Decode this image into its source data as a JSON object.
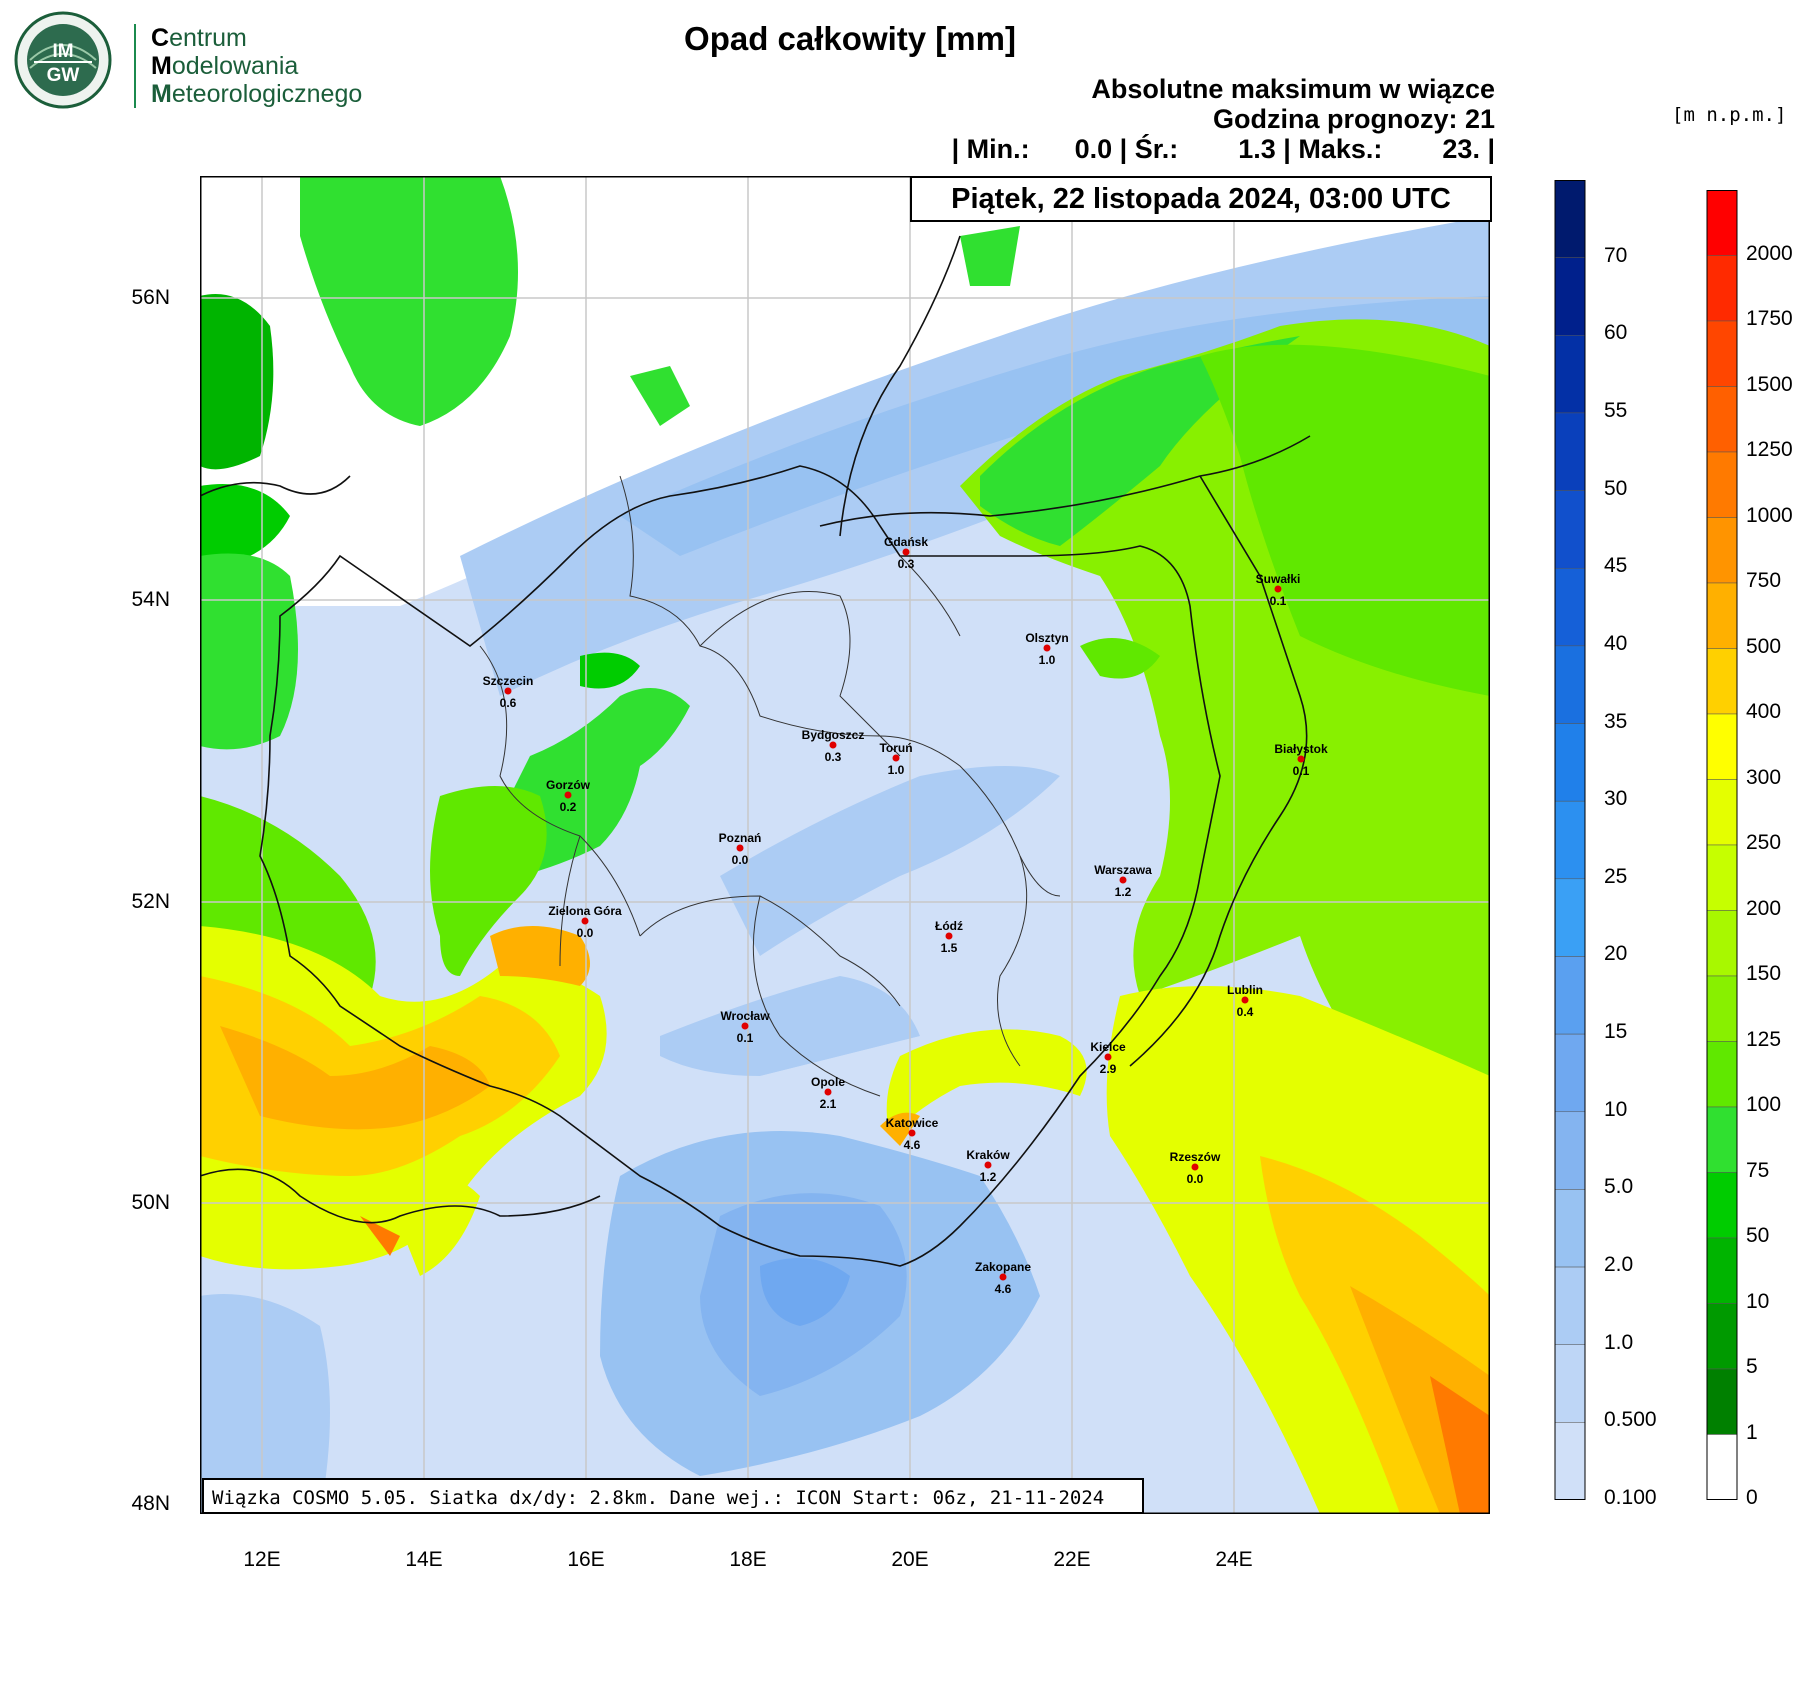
{
  "logo": {
    "seal_text": "IMGW",
    "lines": [
      {
        "initial": "C",
        "rest": "entrum"
      },
      {
        "initial": "M",
        "rest": "odelowania"
      },
      {
        "initial": "M",
        "rest": "eteorologicznego"
      }
    ]
  },
  "title": "Opad całkowity [mm]",
  "info": {
    "line1": "Absolutne maksimum w wiązce",
    "line2": "Godzina prognozy: 21",
    "line3": "| Min.:      0.0 | Śr.:        1.3 | Maks.:        23. |"
  },
  "date": "Piątek, 22 listopada 2024, 03:00 UTC",
  "footer": "Wiązka COSMO 5.05. Siatka dx/dy: 2.8km. Dane wej.: ICON Start: 06z, 21-11-2024",
  "axes": {
    "lat_labels": [
      "56N",
      "54N",
      "52N",
      "50N",
      "48N"
    ],
    "lon_labels": [
      "12E",
      "14E",
      "16E",
      "18E",
      "20E",
      "22E",
      "24E"
    ]
  },
  "precip_scale": {
    "labels": [
      "70",
      "60",
      "55",
      "50",
      "45",
      "40",
      "35",
      "30",
      "25",
      "20",
      "15",
      "10",
      "5.0",
      "2.0",
      "1.0",
      "0.500",
      "0.100"
    ],
    "colors": [
      "#001a6e",
      "#00208c",
      "#0330a6",
      "#0a40bb",
      "#1150cc",
      "#1560d8",
      "#1a70e0",
      "#2080ea",
      "#2c90f0",
      "#3aa0f5",
      "#5aa0f0",
      "#6fa8f0",
      "#84b4f0",
      "#98c2f2",
      "#acccf4",
      "#bed6f6",
      "#d0e0f8"
    ]
  },
  "height_scale": {
    "unit": "[m n.p.m.]",
    "labels": [
      "2000",
      "1750",
      "1500",
      "1250",
      "1000",
      "750",
      "500",
      "400",
      "300",
      "250",
      "200",
      "150",
      "125",
      "100",
      "75",
      "50",
      "10",
      "5",
      "1",
      "0"
    ],
    "colors": [
      "#ff0000",
      "#ff2a00",
      "#ff4600",
      "#ff6000",
      "#ff7a00",
      "#ff9400",
      "#ffb000",
      "#ffd000",
      "#ffff00",
      "#e4ff00",
      "#c6ff00",
      "#a8f800",
      "#88f000",
      "#60e800",
      "#30e030",
      "#00cc00",
      "#00b400",
      "#009a00",
      "#008000",
      "#ffffff"
    ]
  },
  "cities": [
    {
      "name": "Gdańsk",
      "value": "0.3"
    },
    {
      "name": "Olsztyn",
      "value": "1.0"
    },
    {
      "name": "Suwałki",
      "value": "0.1"
    },
    {
      "name": "Szczecin",
      "value": "0.6"
    },
    {
      "name": "Bydgoszcz",
      "value": "0.3"
    },
    {
      "name": "Toruń",
      "value": "1.0"
    },
    {
      "name": "Białystok",
      "value": "0.1"
    },
    {
      "name": "Gorzów",
      "value": "0.2"
    },
    {
      "name": "Poznań",
      "value": "0.0"
    },
    {
      "name": "Warszawa",
      "value": "1.2"
    },
    {
      "name": "Zielona Góra",
      "value": "0.0"
    },
    {
      "name": "Łódź",
      "value": "1.5"
    },
    {
      "name": "Lublin",
      "value": "0.4"
    },
    {
      "name": "Wrocław",
      "value": "0.1"
    },
    {
      "name": "Kielce",
      "value": "2.9"
    },
    {
      "name": "Opole",
      "value": "2.1"
    },
    {
      "name": "Katowice",
      "value": "4.6"
    },
    {
      "name": "Kraków",
      "value": "1.2"
    },
    {
      "name": "Rzeszów",
      "value": "0.0"
    },
    {
      "name": "Zakopane",
      "value": "4.6"
    }
  ]
}
